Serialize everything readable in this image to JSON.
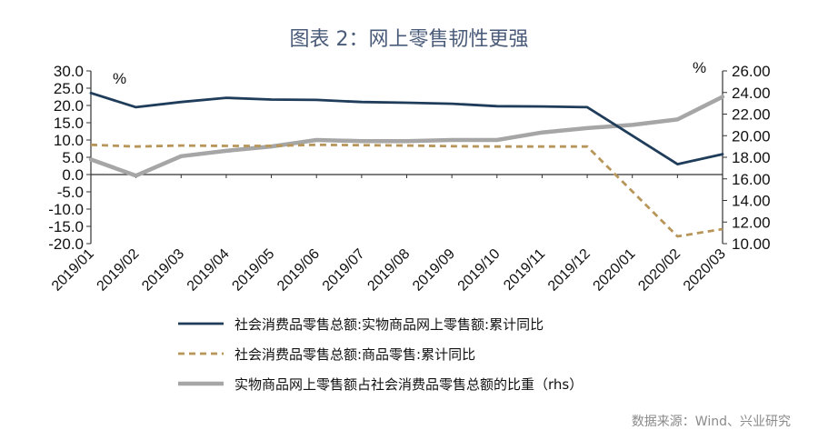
{
  "page": {
    "title": "图表 2：网上零售韧性更强",
    "source": "数据来源：Wind、兴业研究"
  },
  "chart_data": {
    "type": "line",
    "categories": [
      "2019/01",
      "2019/02",
      "2019/03",
      "2019/04",
      "2019/05",
      "2019/06",
      "2019/07",
      "2019/08",
      "2019/09",
      "2019/10",
      "2019/11",
      "2019/12",
      "2020/01",
      "2020/02",
      "2020/03"
    ],
    "left_axis": {
      "unit": "%",
      "ylim": [
        -20,
        30
      ],
      "ticks": [
        "30.0",
        "25.0",
        "20.0",
        "15.0",
        "10.0",
        "5.0",
        "0.0",
        "-5.0",
        "-10.0",
        "-15.0",
        "-20.0"
      ]
    },
    "right_axis": {
      "unit": "%",
      "ylim": [
        10,
        26
      ],
      "ticks": [
        "26.00",
        "24.00",
        "22.00",
        "20.00",
        "18.00",
        "16.00",
        "14.00",
        "12.00",
        "10.00"
      ]
    },
    "grid": false,
    "legend_position": "bottom",
    "series": [
      {
        "name": "社会消费品零售总额:实物商品网上零售额:累计同比",
        "axis": "left",
        "color": "#1f3d5a",
        "style": "solid",
        "values": [
          null,
          19.5,
          21.0,
          22.2,
          21.7,
          21.6,
          21.0,
          20.8,
          20.5,
          19.8,
          19.7,
          19.5,
          null,
          3.0,
          5.9
        ],
        "start_value": 23.6
      },
      {
        "name": "社会消费品零售总额:商品零售:累计同比",
        "axis": "left",
        "color": "#b8965a",
        "style": "dashed",
        "values": [
          null,
          8.1,
          8.4,
          8.3,
          8.3,
          8.6,
          8.5,
          8.4,
          8.2,
          8.1,
          8.1,
          8.1,
          null,
          -17.9,
          -15.8
        ],
        "start_value": 8.6
      },
      {
        "name": "实物商品网上零售额占社会消费品零售总额的比重（rhs）",
        "axis": "right",
        "color": "#a6a6a6",
        "style": "solid",
        "values": [
          null,
          16.3,
          18.1,
          18.6,
          19.0,
          19.6,
          19.5,
          19.5,
          19.6,
          19.6,
          20.3,
          20.7,
          21.0,
          21.5,
          23.6
        ],
        "start_value": 17.8
      }
    ]
  }
}
